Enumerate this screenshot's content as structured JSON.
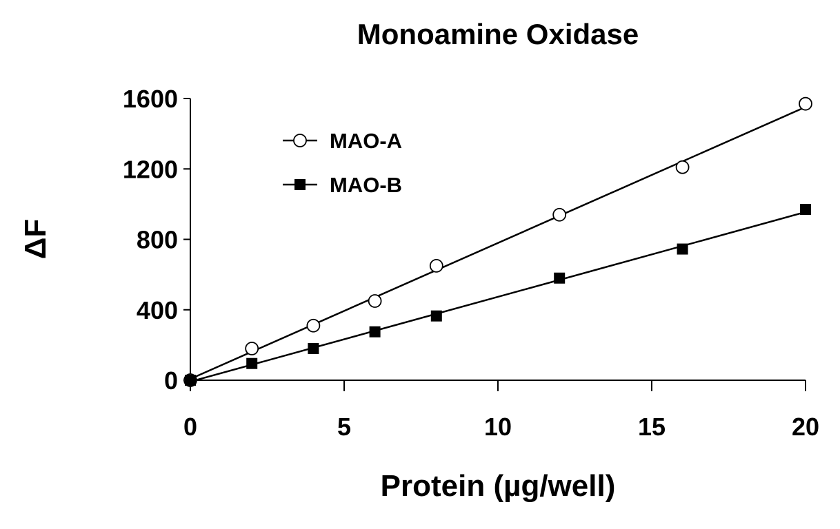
{
  "chart_data": {
    "type": "scatter",
    "title": "Monoamine Oxidase",
    "xlabel": "Protein (µg/well)",
    "ylabel": "ΔF",
    "xlim": [
      0,
      20
    ],
    "ylim": [
      0,
      1600
    ],
    "xticks": [
      0,
      5,
      10,
      15,
      20
    ],
    "yticks": [
      0,
      400,
      800,
      1200,
      1600
    ],
    "grid": false,
    "legend_position": "top-left",
    "series": [
      {
        "name": "MAO-A",
        "marker": "open-circle",
        "fit": "linear",
        "x": [
          0,
          2,
          4,
          6,
          8,
          12,
          16,
          20
        ],
        "y": [
          0,
          180,
          310,
          450,
          650,
          940,
          1210,
          1570
        ]
      },
      {
        "name": "MAO-B",
        "marker": "filled-square",
        "fit": "linear",
        "x": [
          0,
          2,
          4,
          6,
          8,
          12,
          16,
          20
        ],
        "y": [
          0,
          95,
          180,
          275,
          365,
          580,
          745,
          970
        ]
      }
    ]
  },
  "colors": {
    "ink": "#000000",
    "background": "#ffffff",
    "marker_open_fill": "#ffffff"
  }
}
